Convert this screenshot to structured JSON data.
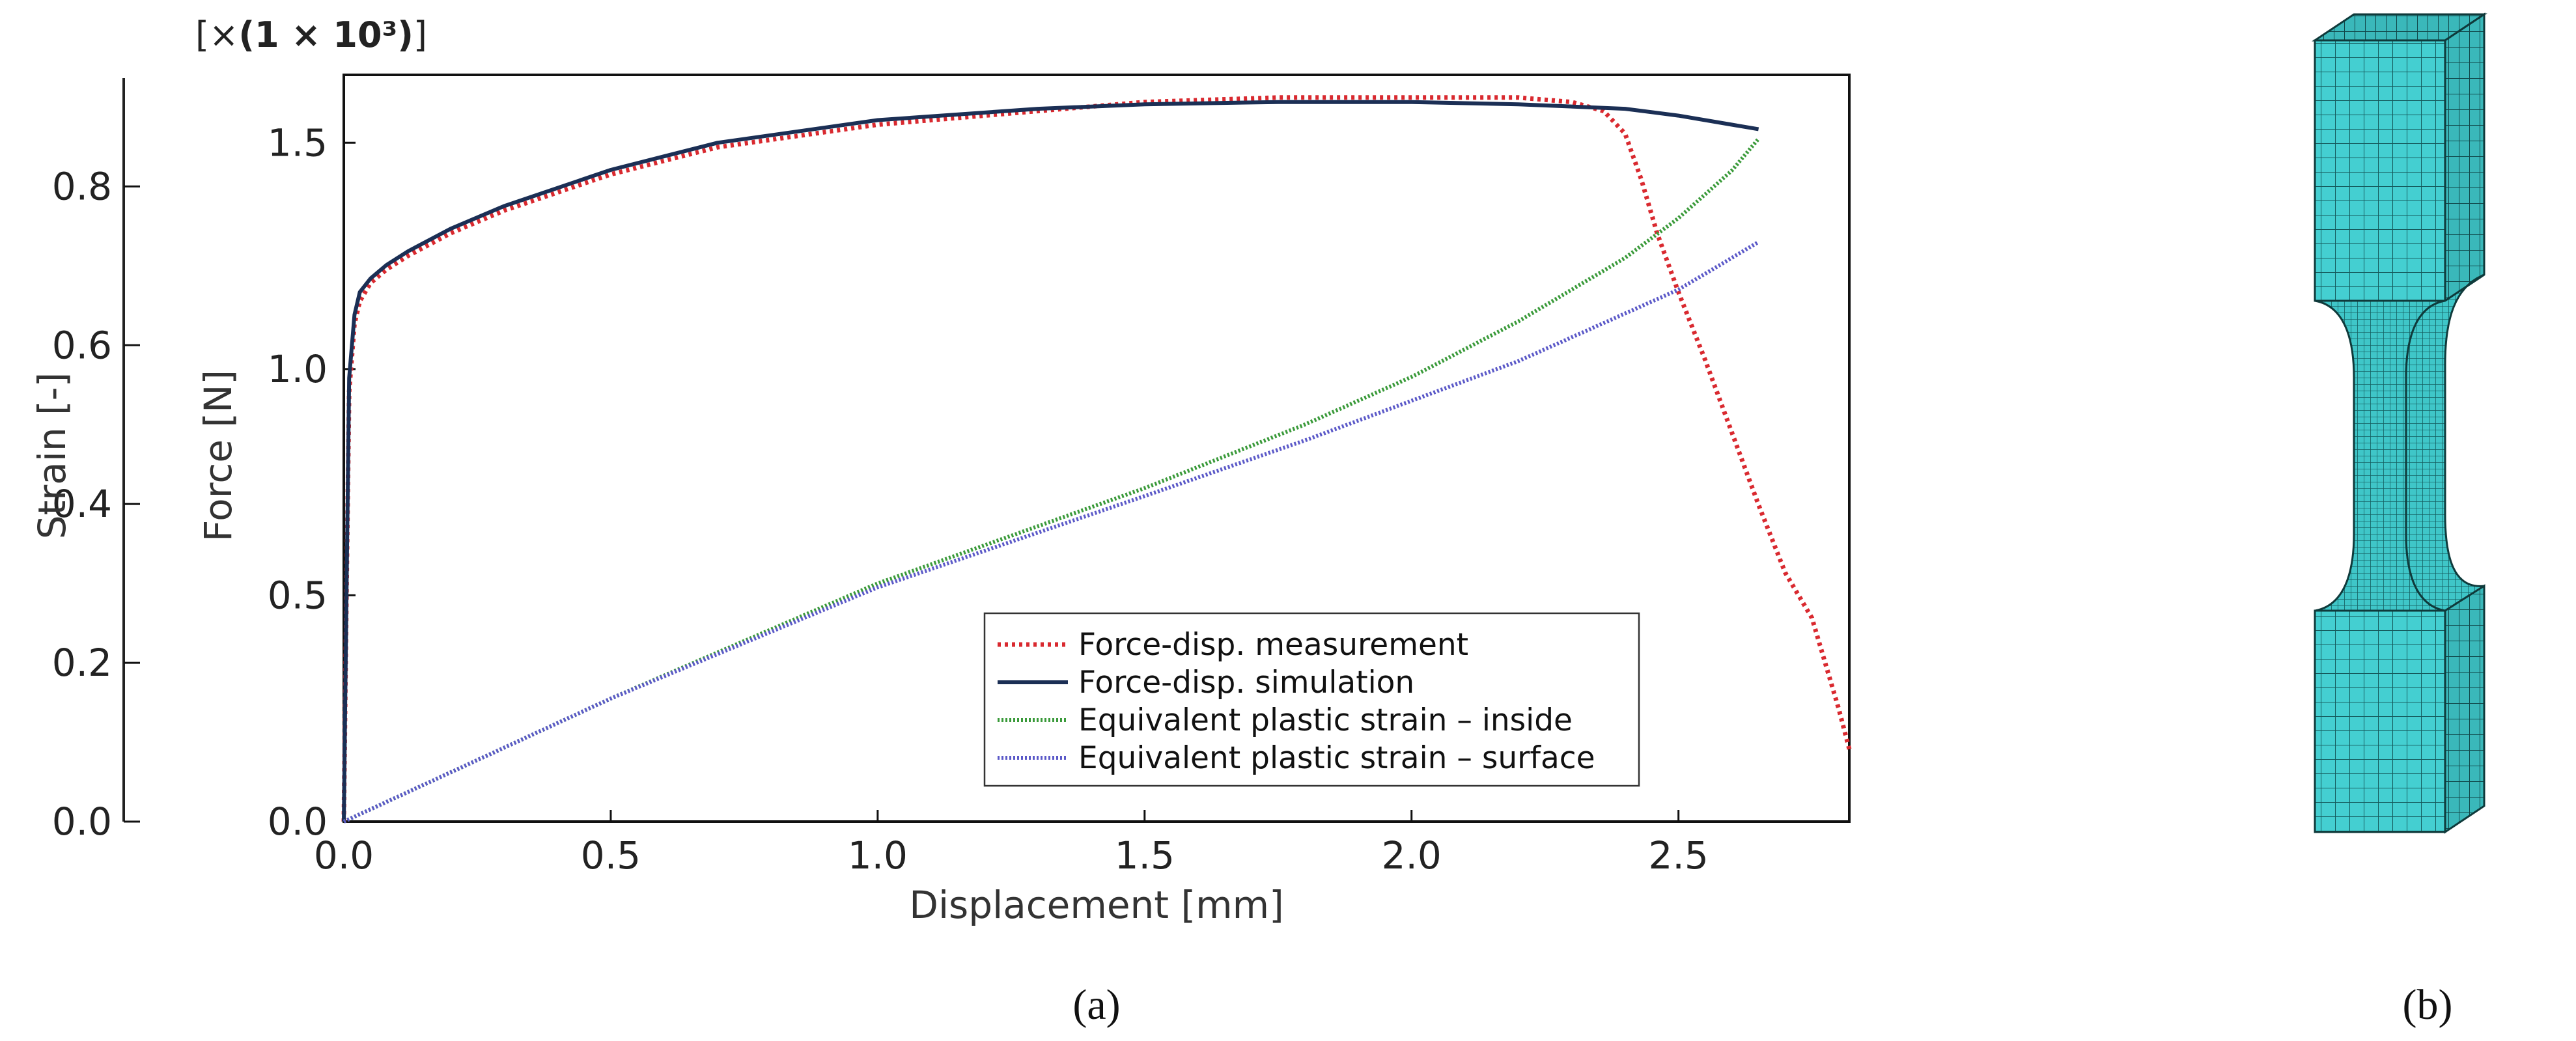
{
  "panels": {
    "a_label": "(a)",
    "b_label": "(b)"
  },
  "chart_data": {
    "type": "line",
    "title": "",
    "xlabel": "Displacement [mm]",
    "ylabel_left": "Strain [-]",
    "ylabel_right": "Force [N]",
    "force_multiplier_prefix": "[×",
    "force_multiplier_bold": "(1 × 10³)",
    "force_multiplier_suffix": "]",
    "xlim": [
      0,
      2.82
    ],
    "strain_lim": [
      0,
      0.92
    ],
    "force_lim": [
      0,
      1.65
    ],
    "x_ticks": [
      "0.0",
      "0.5",
      "1.0",
      "1.5",
      "2.0",
      "2.5"
    ],
    "strain_ticks": [
      "0.0",
      "0.2",
      "0.4",
      "0.6",
      "0.8"
    ],
    "force_ticks": [
      "0.0",
      "0.5",
      "1.0",
      "1.5"
    ],
    "legend_position": "lower-right",
    "colors": {
      "measurement": "#d9292f",
      "simulation": "#1b2f55",
      "inside": "#3a9a3a",
      "surface": "#5b59c8"
    },
    "series": [
      {
        "name": "Force-disp. measurement",
        "axis": "force",
        "style": "dotted",
        "x": [
          0,
          0.005,
          0.01,
          0.02,
          0.03,
          0.05,
          0.08,
          0.12,
          0.2,
          0.3,
          0.5,
          0.7,
          1.0,
          1.3,
          1.5,
          1.75,
          2.0,
          2.2,
          2.3,
          2.36,
          2.4,
          2.43,
          2.46,
          2.5,
          2.55,
          2.6,
          2.65,
          2.7,
          2.75,
          2.8,
          2.82
        ],
        "y": [
          0,
          0.5,
          0.95,
          1.1,
          1.15,
          1.19,
          1.22,
          1.25,
          1.3,
          1.35,
          1.43,
          1.49,
          1.54,
          1.57,
          1.59,
          1.6,
          1.6,
          1.6,
          1.59,
          1.57,
          1.52,
          1.42,
          1.3,
          1.17,
          1.02,
          0.86,
          0.7,
          0.55,
          0.45,
          0.25,
          0.16
        ]
      },
      {
        "name": "Force-disp. simulation",
        "axis": "force",
        "style": "solid",
        "x": [
          0,
          0.005,
          0.01,
          0.02,
          0.03,
          0.05,
          0.08,
          0.12,
          0.2,
          0.3,
          0.5,
          0.7,
          1.0,
          1.3,
          1.5,
          1.75,
          2.0,
          2.2,
          2.4,
          2.5,
          2.6,
          2.65
        ],
        "y": [
          0,
          0.5,
          0.98,
          1.12,
          1.17,
          1.2,
          1.23,
          1.26,
          1.31,
          1.36,
          1.44,
          1.5,
          1.55,
          1.575,
          1.585,
          1.59,
          1.59,
          1.585,
          1.575,
          1.56,
          1.54,
          1.53
        ]
      },
      {
        "name": "Equivalent plastic strain – inside",
        "axis": "strain",
        "style": "dotted",
        "x": [
          0,
          0.5,
          1.0,
          1.5,
          1.8,
          2.0,
          2.2,
          2.4,
          2.5,
          2.6,
          2.65
        ],
        "y": [
          0,
          0.155,
          0.3,
          0.42,
          0.5,
          0.56,
          0.63,
          0.71,
          0.76,
          0.82,
          0.86
        ]
      },
      {
        "name": "Equivalent plastic strain – surface",
        "axis": "strain",
        "style": "dotted",
        "x": [
          0,
          0.5,
          1.0,
          1.5,
          1.8,
          2.0,
          2.2,
          2.4,
          2.5,
          2.6,
          2.65
        ],
        "y": [
          0,
          0.155,
          0.295,
          0.41,
          0.48,
          0.53,
          0.58,
          0.64,
          0.67,
          0.71,
          0.73
        ]
      }
    ]
  }
}
